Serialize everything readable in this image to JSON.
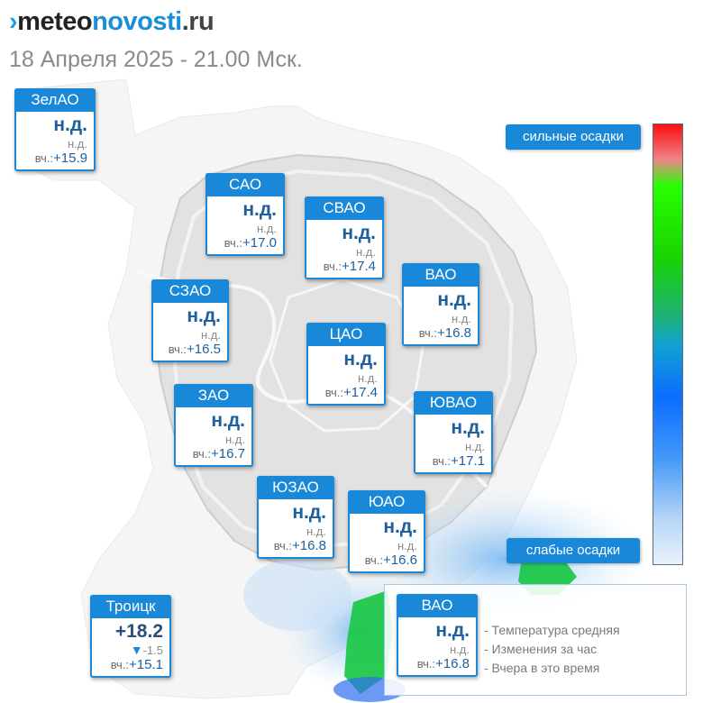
{
  "header": {
    "logo_mark": "›",
    "logo_part1": "meteo",
    "logo_part2": "novosti",
    "logo_part3": ".ru",
    "datetime": "18 Апреля 2025 - 21.00 Мск."
  },
  "districts": [
    {
      "id": "zelao",
      "name": "ЗелАО",
      "temp": "н.д.",
      "change": "н.д.",
      "yesterday_label": "вч.:",
      "yesterday": "+15.9"
    },
    {
      "id": "sao",
      "name": "САО",
      "temp": "н.д.",
      "change": "н.д.",
      "yesterday_label": "вч.:",
      "yesterday": "+17.0"
    },
    {
      "id": "svao",
      "name": "СВАО",
      "temp": "н.д.",
      "change": "н.д.",
      "yesterday_label": "вч.:",
      "yesterday": "+17.4"
    },
    {
      "id": "vao",
      "name": "ВАО",
      "temp": "н.д.",
      "change": "н.д.",
      "yesterday_label": "вч.:",
      "yesterday": "+16.8"
    },
    {
      "id": "szao",
      "name": "СЗАО",
      "temp": "н.д.",
      "change": "н.д.",
      "yesterday_label": "вч.:",
      "yesterday": "+16.5"
    },
    {
      "id": "cao",
      "name": "ЦАО",
      "temp": "н.д.",
      "change": "н.д.",
      "yesterday_label": "вч.:",
      "yesterday": "+17.4"
    },
    {
      "id": "zao",
      "name": "ЗАО",
      "temp": "н.д.",
      "change": "н.д.",
      "yesterday_label": "вч.:",
      "yesterday": "+16.7"
    },
    {
      "id": "yuvao",
      "name": "ЮВАО",
      "temp": "н.д.",
      "change": "н.д.",
      "yesterday_label": "вч.:",
      "yesterday": "+17.1"
    },
    {
      "id": "yuzao",
      "name": "ЮЗАО",
      "temp": "н.д.",
      "change": "н.д.",
      "yesterday_label": "вч.:",
      "yesterday": "+16.8"
    },
    {
      "id": "yuao",
      "name": "ЮАО",
      "temp": "н.д.",
      "change": "н.д.",
      "yesterday_label": "вч.:",
      "yesterday": "+16.6"
    },
    {
      "id": "troitsk",
      "name": "Троицк",
      "temp": "+18.2",
      "change_arrow": "▼",
      "change": "-1.5",
      "yesterday_label": "вч.:",
      "yesterday": "+15.1"
    }
  ],
  "precip_scale": {
    "top_label": "сильные осадки",
    "bottom_label": "слабые осадки",
    "colors": [
      "#ff0e10",
      "#27ff00",
      "#12a2d2",
      "#0b6cff",
      "#e9f2fc"
    ]
  },
  "legend": {
    "card": {
      "name": "ВАО",
      "temp": "н.д.",
      "change": "н.д.",
      "yesterday_label": "вч.:",
      "yesterday": "+16.8"
    },
    "items": [
      "- Температура средняя",
      "- Изменения за час",
      "- Вчера в это время"
    ]
  }
}
